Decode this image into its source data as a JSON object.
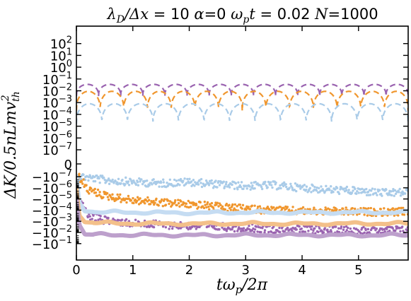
{
  "chart_data": {
    "type": "line",
    "title": "λ_D/Δx = 10 α=0 ω_p t = 0.02 N=1000",
    "title_parts": {
      "lambda": "λ",
      "lambda_sub": "D",
      "ratio": "/Δ",
      "x": "x",
      "eq1": " = 10 ",
      "alpha": "α",
      "eq2": "=0 ",
      "omega": "ω",
      "omega_sub": "p",
      "t": "t",
      "eq3": " = 0.02 ",
      "N": "N",
      "eq4": "=1000"
    },
    "xlabel": "tω_p/2π",
    "xlabel_parts": {
      "pre": "tω",
      "sub": "p",
      "post": "/2π"
    },
    "ylabel": "ΔK/0.5nLmv_th^2",
    "ylabel_parts": {
      "pre": "ΔK/0.5nLmv",
      "sub": "th",
      "sup": "2"
    },
    "xlim": [
      0,
      5.88
    ],
    "yscale": "symlog",
    "grid": false,
    "x_ticks": [
      {
        "value": 0,
        "label": "0"
      },
      {
        "value": 1,
        "label": "1"
      },
      {
        "value": 2,
        "label": "2"
      },
      {
        "value": 3,
        "label": "3"
      },
      {
        "value": 4,
        "label": "4"
      },
      {
        "value": 5,
        "label": "5"
      }
    ],
    "y_ticks": [
      {
        "value": 100,
        "base": "10",
        "exp": "2"
      },
      {
        "value": 10,
        "base": "10",
        "exp": "1"
      },
      {
        "value": 1,
        "base": "10",
        "exp": "0"
      },
      {
        "value": 0.1,
        "base": "10",
        "exp": "−1"
      },
      {
        "value": 0.01,
        "base": "10",
        "exp": "−2"
      },
      {
        "value": 0.001,
        "base": "10",
        "exp": "−3"
      },
      {
        "value": 0.0001,
        "base": "10",
        "exp": "−4"
      },
      {
        "value": 1e-05,
        "base": "10",
        "exp": "−5"
      },
      {
        "value": 1e-06,
        "base": "10",
        "exp": "−6"
      },
      {
        "value": 1e-07,
        "base": "10",
        "exp": "−7"
      },
      {
        "value": 0,
        "base": "0",
        "exp": ""
      },
      {
        "value": -1e-07,
        "base": "−10",
        "exp": "−7"
      },
      {
        "value": -1e-06,
        "base": "−10",
        "exp": "−6"
      },
      {
        "value": -1e-05,
        "base": "−10",
        "exp": "−5"
      },
      {
        "value": -0.0001,
        "base": "−10",
        "exp": "−4"
      },
      {
        "value": -0.001,
        "base": "−10",
        "exp": "−3"
      },
      {
        "value": -0.01,
        "base": "−10",
        "exp": "−2"
      },
      {
        "value": -0.1,
        "base": "−10",
        "exp": "−1"
      }
    ],
    "series": [
      {
        "style": "dashed",
        "color": "#9a63b0",
        "kind": "oscillating",
        "low": 0.0035,
        "high": 0.035,
        "bumps": 15
      },
      {
        "style": "dashed",
        "color": "#f0962d",
        "kind": "oscillating",
        "low": 0.0002,
        "high": 0.009,
        "bumps": 14
      },
      {
        "style": "dashed",
        "color": "#a9cbe8",
        "kind": "oscillating",
        "low": 1.5e-05,
        "high": 0.0008,
        "bumps": 13
      },
      {
        "style": "dots",
        "color": "#a9cbe8",
        "kind": "scatter",
        "x": [
          0.1,
          0.5,
          1.0,
          1.5,
          2.0,
          2.5,
          3.0,
          3.5,
          4.0,
          4.5,
          5.0,
          5.5,
          5.85
        ],
        "y": [
          -1e-07,
          -2e-07,
          -3e-07,
          -4e-07,
          -3e-07,
          -5e-07,
          -7e-07,
          -6e-07,
          -1e-06,
          -1.5e-06,
          -2e-06,
          -3e-06,
          -2.5e-06
        ]
      },
      {
        "style": "dots",
        "color": "#f0962d",
        "kind": "scatter",
        "x": [
          0.05,
          0.2,
          0.5,
          1.0,
          1.5,
          2.0,
          2.5,
          3.0,
          3.5,
          4.0,
          4.5,
          5.0,
          5.5,
          5.85
        ],
        "y": [
          -1e-07,
          -1.5e-06,
          -5e-06,
          -1.3e-05,
          -2e-05,
          -3e-05,
          -5e-05,
          -8e-05,
          -0.0001,
          -0.00012,
          -0.00013,
          -0.00014,
          -0.00015,
          -0.00014
        ]
      },
      {
        "style": "dots",
        "color": "#9a63b0",
        "kind": "scatter",
        "x": [
          0.05,
          0.2,
          0.5,
          1.0,
          1.5,
          2.0,
          2.5,
          3.0,
          3.5,
          4.0,
          4.5,
          5.0,
          5.5,
          5.85
        ],
        "y": [
          -1e-05,
          -0.0003,
          -0.0008,
          -0.0015,
          -0.002,
          -0.0025,
          -0.003,
          -0.004,
          -0.005,
          -0.0055,
          -0.0055,
          -0.006,
          -0.006,
          -0.006
        ]
      },
      {
        "style": "thick",
        "color": "#c5dcf2",
        "kind": "line",
        "x": [
          0.0,
          0.05,
          0.15,
          0.4,
          1.0,
          2.0,
          3.0,
          4.0,
          5.0,
          5.85
        ],
        "y": [
          -1e-07,
          -2e-05,
          -0.00013,
          -0.00015,
          -0.00016,
          -0.00018,
          -0.00016,
          -0.00017,
          -0.00016,
          -0.00016
        ]
      },
      {
        "style": "thick",
        "color": "#f3c08a",
        "kind": "line",
        "x": [
          0.0,
          0.05,
          0.15,
          0.4,
          1.0,
          2.0,
          3.0,
          4.0,
          5.0,
          5.85
        ],
        "y": [
          -1e-06,
          -0.0003,
          -0.0012,
          -0.0014,
          -0.0016,
          -0.0017,
          -0.0016,
          -0.0017,
          -0.0016,
          -0.0016
        ]
      },
      {
        "style": "thick",
        "color": "#bda0cc",
        "kind": "line",
        "x": [
          0.0,
          0.05,
          0.15,
          0.4,
          1.0,
          2.0,
          3.0,
          4.0,
          5.0,
          5.85
        ],
        "y": [
          -1e-05,
          -0.002,
          -0.015,
          -0.016,
          -0.017,
          -0.018,
          -0.017,
          -0.017,
          -0.018,
          -0.017
        ]
      }
    ]
  }
}
